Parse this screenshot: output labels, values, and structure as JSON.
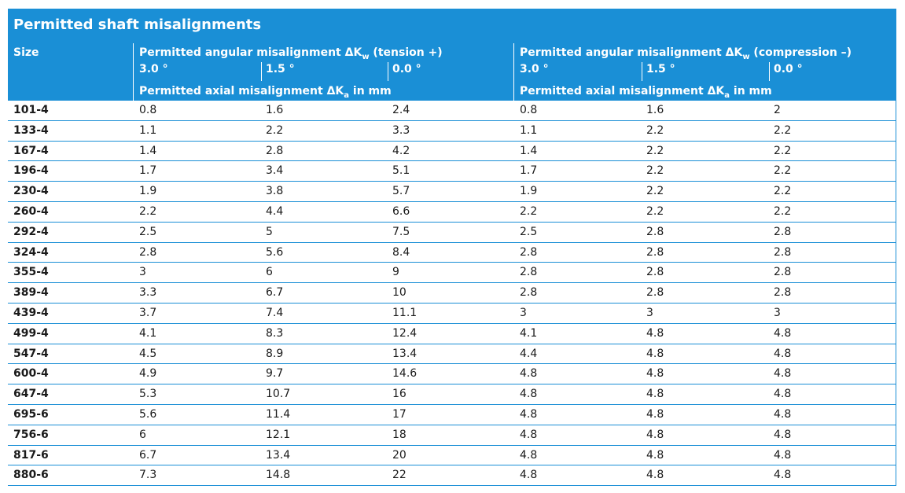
{
  "title": "Permitted shaft misalignments",
  "header": {
    "size_label": "Size",
    "tension_label_prefix": "Permitted angular misalignment ΔK",
    "tension_label_sub": "w",
    "tension_label_suffix": " (tension +)",
    "compression_label_prefix": "Permitted angular misalignment ΔK",
    "compression_label_sub": "w",
    "compression_label_suffix": " (compression –)",
    "angles": [
      "3.0 °",
      "1.5 °",
      "0.0 °"
    ],
    "axial_label_prefix": "Permitted axial misalignment ΔK",
    "axial_label_sub": "a",
    "axial_label_suffix": " in mm"
  },
  "rows": [
    {
      "size": "101-4",
      "t": [
        "0.8",
        "1.6",
        "2.4"
      ],
      "c": [
        "0.8",
        "1.6",
        "2"
      ]
    },
    {
      "size": "133-4",
      "t": [
        "1.1",
        "2.2",
        "3.3"
      ],
      "c": [
        "1.1",
        "2.2",
        "2.2"
      ]
    },
    {
      "size": "167-4",
      "t": [
        "1.4",
        "2.8",
        "4.2"
      ],
      "c": [
        "1.4",
        "2.2",
        "2.2"
      ]
    },
    {
      "size": "196-4",
      "t": [
        "1.7",
        "3.4",
        "5.1"
      ],
      "c": [
        "1.7",
        "2.2",
        "2.2"
      ]
    },
    {
      "size": "230-4",
      "t": [
        "1.9",
        "3.8",
        "5.7"
      ],
      "c": [
        "1.9",
        "2.2",
        "2.2"
      ]
    },
    {
      "size": "260-4",
      "t": [
        "2.2",
        "4.4",
        "6.6"
      ],
      "c": [
        "2.2",
        "2.2",
        "2.2"
      ]
    },
    {
      "size": "292-4",
      "t": [
        "2.5",
        "5",
        "7.5"
      ],
      "c": [
        "2.5",
        "2.8",
        "2.8"
      ]
    },
    {
      "size": "324-4",
      "t": [
        "2.8",
        "5.6",
        "8.4"
      ],
      "c": [
        "2.8",
        "2.8",
        "2.8"
      ]
    },
    {
      "size": "355-4",
      "t": [
        "3",
        "6",
        "9"
      ],
      "c": [
        "2.8",
        "2.8",
        "2.8"
      ]
    },
    {
      "size": "389-4",
      "t": [
        "3.3",
        "6.7",
        "10"
      ],
      "c": [
        "2.8",
        "2.8",
        "2.8"
      ]
    },
    {
      "size": "439-4",
      "t": [
        "3.7",
        "7.4",
        "11.1"
      ],
      "c": [
        "3",
        "3",
        "3"
      ]
    },
    {
      "size": "499-4",
      "t": [
        "4.1",
        "8.3",
        "12.4"
      ],
      "c": [
        "4.1",
        "4.8",
        "4.8"
      ]
    },
    {
      "size": "547-4",
      "t": [
        "4.5",
        "8.9",
        "13.4"
      ],
      "c": [
        "4.4",
        "4.8",
        "4.8"
      ]
    },
    {
      "size": "600-4",
      "t": [
        "4.9",
        "9.7",
        "14.6"
      ],
      "c": [
        "4.8",
        "4.8",
        "4.8"
      ]
    },
    {
      "size": "647-4",
      "t": [
        "5.3",
        "10.7",
        "16"
      ],
      "c": [
        "4.8",
        "4.8",
        "4.8"
      ]
    },
    {
      "size": "695-6",
      "t": [
        "5.6",
        "11.4",
        "17"
      ],
      "c": [
        "4.8",
        "4.8",
        "4.8"
      ]
    },
    {
      "size": "756-6",
      "t": [
        "6",
        "12.1",
        "18"
      ],
      "c": [
        "4.8",
        "4.8",
        "4.8"
      ]
    },
    {
      "size": "817-6",
      "t": [
        "6.7",
        "13.4",
        "20"
      ],
      "c": [
        "4.8",
        "4.8",
        "4.8"
      ]
    },
    {
      "size": "880-6",
      "t": [
        "7.3",
        "14.8",
        "22"
      ],
      "c": [
        "4.8",
        "4.8",
        "4.8"
      ]
    }
  ]
}
